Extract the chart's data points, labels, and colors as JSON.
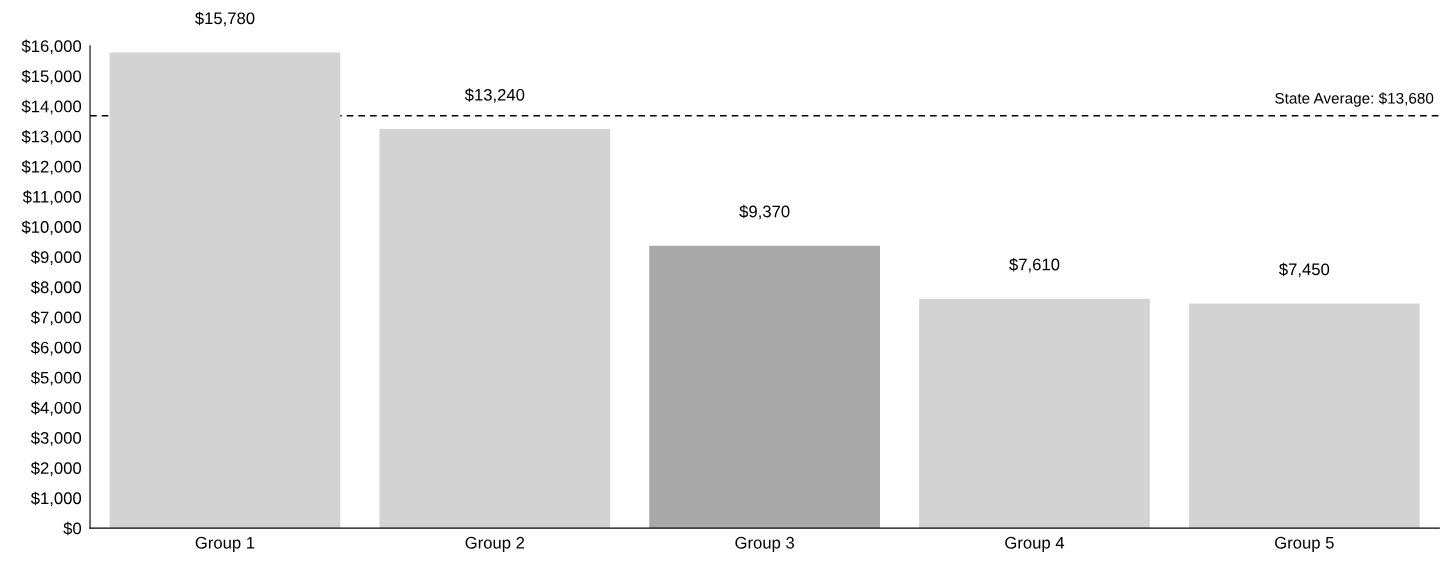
{
  "chart_data": {
    "type": "bar",
    "categories": [
      "Group 1",
      "Group 2",
      "Group 3",
      "Group 4",
      "Group 5"
    ],
    "values": [
      15780,
      13240,
      9370,
      7610,
      7450
    ],
    "colors": [
      "#d3d3d3",
      "#d3d3d3",
      "#a9a9a9",
      "#d3d3d3",
      "#d3d3d3"
    ],
    "value_labels": [
      "$15,780",
      "$13,240",
      "$9,370",
      "$7,610",
      "$7,450"
    ],
    "ylim": [
      0,
      16000
    ],
    "yticks": [
      {
        "value": 0,
        "label": "$0"
      },
      {
        "value": 1000,
        "label": "$1,000"
      },
      {
        "value": 2000,
        "label": "$2,000"
      },
      {
        "value": 3000,
        "label": "$3,000"
      },
      {
        "value": 4000,
        "label": "$4,000"
      },
      {
        "value": 5000,
        "label": "$5,000"
      },
      {
        "value": 6000,
        "label": "$6,000"
      },
      {
        "value": 7000,
        "label": "$7,000"
      },
      {
        "value": 8000,
        "label": "$8,000"
      },
      {
        "value": 9000,
        "label": "$9,000"
      },
      {
        "value": 10000,
        "label": "$10,000"
      },
      {
        "value": 11000,
        "label": "$11,000"
      },
      {
        "value": 12000,
        "label": "$12,000"
      },
      {
        "value": 13000,
        "label": "$13,000"
      },
      {
        "value": 14000,
        "label": "$14,000"
      },
      {
        "value": 15000,
        "label": "$15,000"
      },
      {
        "value": 16000,
        "label": "$16,000"
      }
    ],
    "ref_lines": [
      {
        "axis": "y",
        "value": 13680,
        "label": "State Average: $13,680",
        "color": "#000000",
        "line_style": "dashed"
      }
    ],
    "grid": false
  }
}
